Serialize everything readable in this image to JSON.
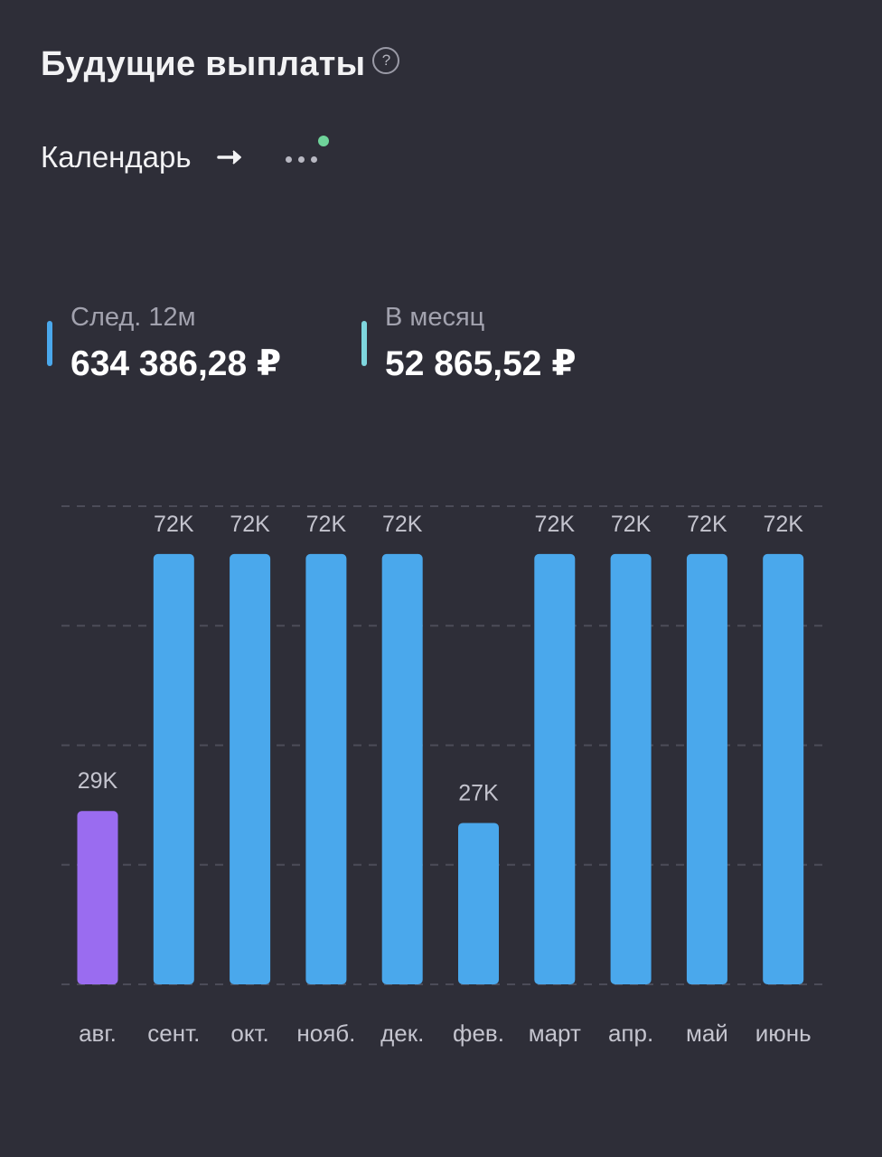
{
  "header": {
    "title": "Будущие выплаты",
    "help_symbol": "?"
  },
  "nav": {
    "calendar_label": "Календарь",
    "arrow_icon": "arrow-right-icon",
    "more_icon": "more-horizontal-icon",
    "notify_color": "#6fd39a"
  },
  "stats": [
    {
      "label": "След. 12м",
      "value": "634 386,28 ₽",
      "color": "#4aa8ec"
    },
    {
      "label": "В месяц",
      "value": "52 865,52 ₽",
      "color": "#7ed6de"
    }
  ],
  "chart_data": {
    "type": "bar",
    "categories": [
      "авг.",
      "сент.",
      "окт.",
      "нояб.",
      "дек.",
      "фев.",
      "март",
      "апр.",
      "май",
      "июнь"
    ],
    "values": [
      29,
      72,
      72,
      72,
      72,
      27,
      72,
      72,
      72,
      72
    ],
    "value_labels": [
      "29K",
      "72K",
      "72K",
      "72K",
      "72K",
      "27K",
      "72K",
      "72K",
      "72K",
      "72K"
    ],
    "unit": "K",
    "ylim": [
      0,
      80
    ],
    "grid": true,
    "grid_step": 20,
    "highlight_index": 0,
    "colors": {
      "default": "#4aa8ec",
      "highlight": "#9a6cf0",
      "label": "#c4c4ce",
      "grid": "#4c4c58"
    }
  }
}
